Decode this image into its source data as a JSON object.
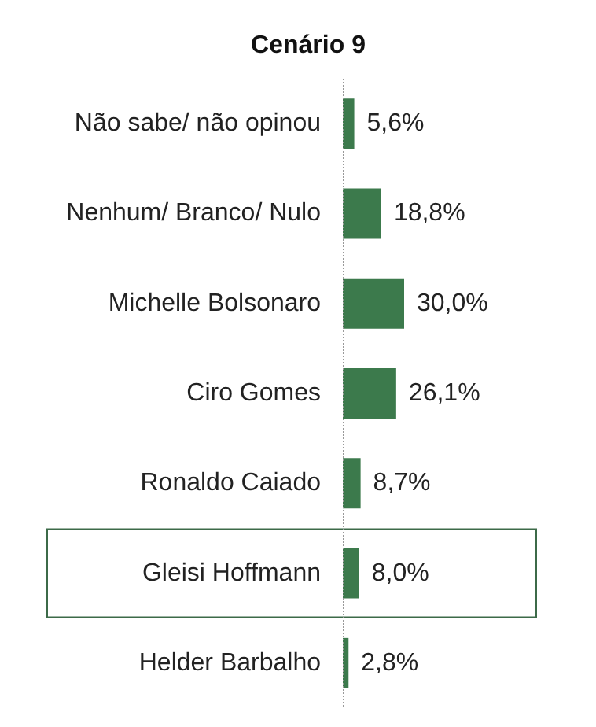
{
  "chart_data": {
    "type": "bar",
    "orientation": "horizontal",
    "title": "Cenário 9",
    "categories": [
      "Não sabe/ não opinou",
      "Nenhum/ Branco/ Nulo",
      "Michelle Bolsonaro",
      "Ciro Gomes",
      "Ronaldo Caiado",
      "Gleisi Hoffmann",
      "Helder Barbalho"
    ],
    "values": [
      5.6,
      18.8,
      30.0,
      26.1,
      8.7,
      8.0,
      2.8
    ],
    "value_labels": [
      "5,6%",
      "18,8%",
      "30,0%",
      "26,1%",
      "8,7%",
      "8,0%",
      "2,8%"
    ],
    "color": "#3c7a4c",
    "grid": false,
    "ref_lines": [
      {
        "axis": "x",
        "value": 0,
        "color": "#999999",
        "line_style": "dotted"
      }
    ]
  }
}
